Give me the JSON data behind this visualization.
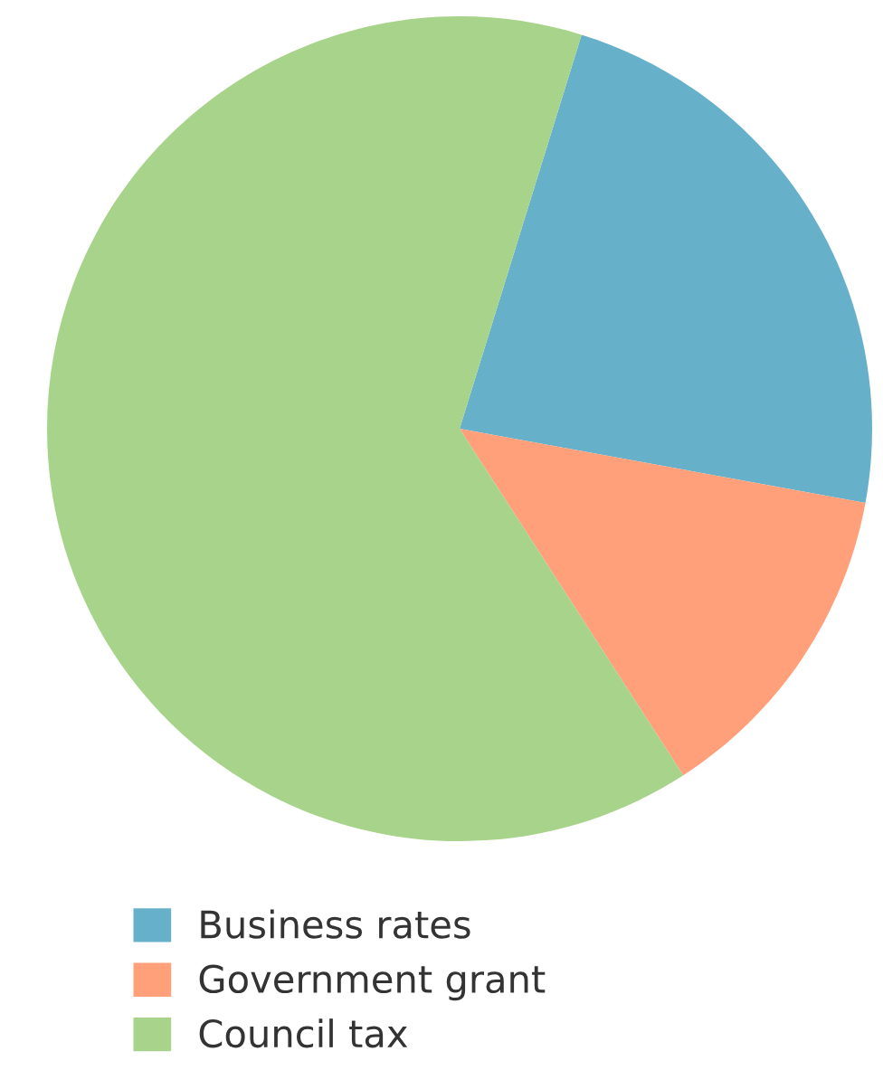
{
  "chart_data": {
    "type": "pie",
    "categories": [
      "Business rates",
      "Government grant",
      "Council tax"
    ],
    "values": [
      23.1,
      13.0,
      63.9
    ],
    "colors": [
      "#67b0c9",
      "#ffa07a",
      "#a8d38a"
    ],
    "legend": "bottom left"
  }
}
